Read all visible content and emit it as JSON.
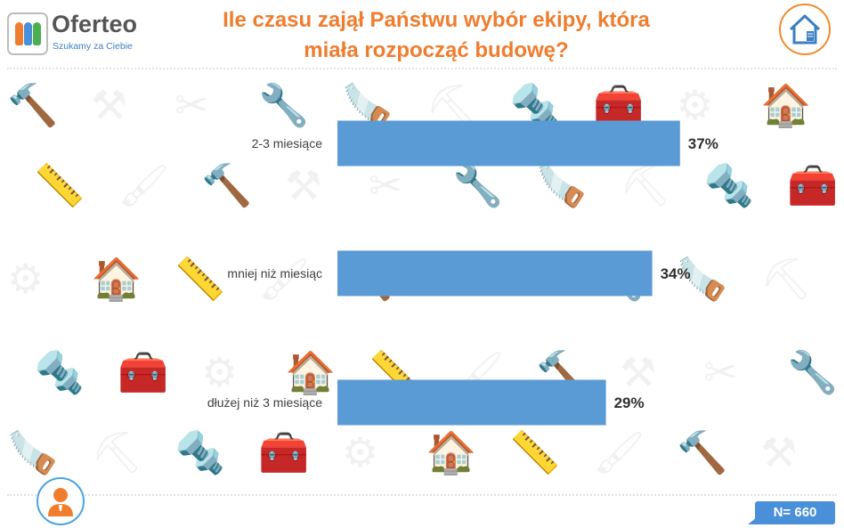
{
  "brand": {
    "name": "Oferteo",
    "tagline": "Szukamy za Ciebie",
    "colors": {
      "orange": "#f07d2e",
      "blue": "#4a90d9",
      "green": "#4caf50"
    }
  },
  "background_icons": [
    "🔨",
    "⚒",
    "✂",
    "🔧",
    "🪚",
    "⛏",
    "🔩",
    "🧰",
    "⚙",
    "🏠",
    "📏",
    "🖌"
  ],
  "sample": {
    "label": "N= 660"
  },
  "icons": {
    "header": "house-icon",
    "footer": "person-icon"
  },
  "chart_data": {
    "type": "bar",
    "orientation": "horizontal",
    "title": "Ile czasu zajął Państwu wybór ekipy, która miała rozpocząć budowę?",
    "categories": [
      "2-3 miesiące",
      "mniej niż miesiąc",
      "dłużej niż 3 miesiące"
    ],
    "values": [
      37,
      34,
      29
    ],
    "value_labels": [
      "37%",
      "34%",
      "29%"
    ],
    "unit": "%",
    "bar_color": "#5b9bd5",
    "grid": false,
    "legend": "none"
  }
}
